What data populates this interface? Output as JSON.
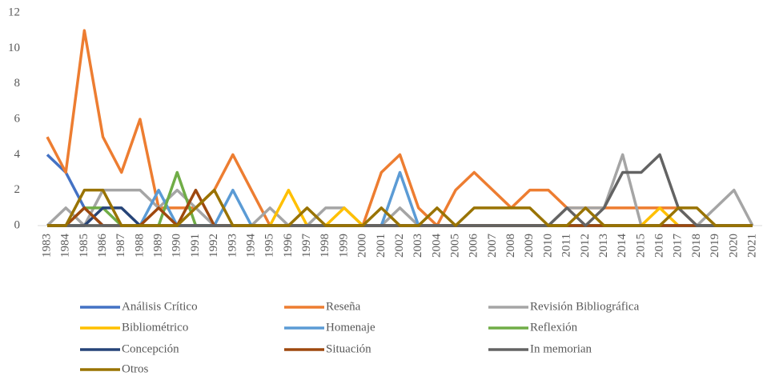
{
  "chart_data": {
    "type": "line",
    "categories": [
      "1983",
      "1984",
      "1985",
      "1986",
      "1987",
      "1988",
      "1989",
      "1990",
      "1991",
      "1992",
      "1993",
      "1994",
      "1995",
      "1996",
      "1997",
      "1998",
      "1999",
      "2000",
      "2001",
      "2002",
      "2003",
      "2004",
      "2005",
      "2006",
      "2007",
      "2008",
      "2009",
      "2010",
      "2011",
      "2012",
      "2013",
      "2014",
      "2015",
      "2016",
      "2017",
      "2018",
      "2019",
      "2020",
      "2021"
    ],
    "ylim": [
      0,
      12
    ],
    "yticks": [
      0,
      2,
      4,
      6,
      8,
      10,
      12
    ],
    "grid": false,
    "legend": "bottom",
    "series": [
      {
        "name": "Análisis Crítico",
        "color": "#4472c4",
        "values": [
          4,
          3,
          1,
          0,
          0,
          0,
          0,
          0,
          0,
          0,
          0,
          0,
          0,
          0,
          0,
          0,
          0,
          0,
          0,
          0,
          0,
          0,
          0,
          0,
          0,
          0,
          0,
          0,
          0,
          0,
          0,
          0,
          0,
          0,
          0,
          0,
          0,
          0,
          0
        ]
      },
      {
        "name": "Reseña",
        "color": "#ed7d31",
        "values": [
          5,
          3,
          11,
          5,
          3,
          6,
          1,
          1,
          1,
          2,
          4,
          2,
          0,
          0,
          0,
          0,
          0,
          0,
          3,
          4,
          1,
          0,
          2,
          3,
          2,
          1,
          2,
          2,
          1,
          1,
          1,
          1,
          1,
          1,
          1,
          0,
          0,
          0,
          0
        ]
      },
      {
        "name": "Revisión Bibliográfica",
        "color": "#a5a5a5",
        "values": [
          0,
          1,
          0,
          2,
          2,
          2,
          1,
          2,
          1,
          0,
          0,
          0,
          1,
          0,
          0,
          1,
          1,
          0,
          0,
          1,
          0,
          0,
          0,
          0,
          0,
          0,
          0,
          0,
          1,
          1,
          1,
          4,
          0,
          0,
          0,
          0,
          1,
          2,
          0
        ]
      },
      {
        "name": "Bibliométrico",
        "color": "#ffc000",
        "values": [
          0,
          0,
          0,
          0,
          0,
          0,
          0,
          0,
          0,
          0,
          0,
          0,
          0,
          2,
          0,
          0,
          1,
          0,
          0,
          0,
          0,
          0,
          0,
          0,
          0,
          0,
          0,
          0,
          0,
          0,
          0,
          0,
          0,
          1,
          0,
          0,
          0,
          0,
          0
        ]
      },
      {
        "name": "Homenaje",
        "color": "#5b9bd5",
        "values": [
          0,
          0,
          0,
          0,
          0,
          0,
          2,
          0,
          0,
          0,
          2,
          0,
          0,
          0,
          0,
          0,
          0,
          0,
          0,
          3,
          0,
          0,
          0,
          0,
          0,
          0,
          0,
          0,
          0,
          0,
          0,
          0,
          0,
          0,
          0,
          0,
          0,
          0,
          0
        ]
      },
      {
        "name": "Reflexión",
        "color": "#70ad47",
        "values": [
          0,
          0,
          1,
          1,
          0,
          0,
          0,
          3,
          0,
          0,
          0,
          0,
          0,
          0,
          0,
          0,
          0,
          0,
          0,
          0,
          0,
          0,
          0,
          0,
          0,
          0,
          0,
          0,
          0,
          0,
          0,
          0,
          0,
          0,
          0,
          0,
          0,
          0,
          0
        ]
      },
      {
        "name": "Concepción",
        "color": "#264478",
        "values": [
          0,
          0,
          0,
          1,
          1,
          0,
          0,
          0,
          0,
          0,
          0,
          0,
          0,
          0,
          0,
          0,
          0,
          0,
          0,
          0,
          0,
          0,
          0,
          0,
          0,
          0,
          0,
          0,
          0,
          0,
          0,
          0,
          0,
          0,
          0,
          0,
          0,
          0,
          0
        ]
      },
      {
        "name": "Situación",
        "color": "#9e480e",
        "values": [
          0,
          0,
          1,
          0,
          0,
          0,
          1,
          0,
          2,
          0,
          0,
          0,
          0,
          0,
          0,
          0,
          0,
          0,
          0,
          0,
          0,
          0,
          0,
          0,
          0,
          0,
          0,
          0,
          0,
          0,
          0,
          0,
          0,
          0,
          0,
          0,
          0,
          0,
          0
        ]
      },
      {
        "name": "In memorian",
        "color": "#636363",
        "values": [
          0,
          0,
          0,
          0,
          0,
          0,
          0,
          0,
          0,
          0,
          0,
          0,
          0,
          0,
          0,
          0,
          0,
          0,
          0,
          0,
          0,
          0,
          0,
          0,
          0,
          0,
          0,
          0,
          1,
          0,
          1,
          3,
          3,
          4,
          1,
          0,
          0,
          0,
          0
        ]
      },
      {
        "name": "Otros",
        "color": "#997300",
        "values": [
          0,
          0,
          2,
          2,
          0,
          0,
          0,
          0,
          1,
          2,
          0,
          0,
          0,
          0,
          1,
          0,
          0,
          0,
          1,
          0,
          0,
          1,
          0,
          1,
          1,
          1,
          1,
          0,
          0,
          1,
          0,
          0,
          0,
          0,
          1,
          1,
          0,
          0,
          0
        ]
      }
    ]
  }
}
